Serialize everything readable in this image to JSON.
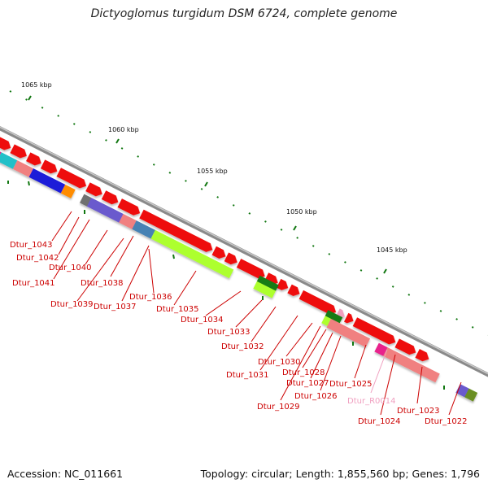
{
  "title": "Dictyoglomus turgidum DSM 6724, complete genome",
  "footer": {
    "accession": "Accession: NC_011661",
    "summary": "Topology: circular; Length: 1,855,560 bp; Genes: 1,796"
  },
  "scale_labels": [
    "1065 kbp",
    "1060 kbp",
    "1055 kbp",
    "1050 kbp",
    "1045 kbp"
  ],
  "gene_labels": [
    "Dtur_1043",
    "Dtur_1042",
    "Dtur_1040",
    "Dtur_1041",
    "Dtur_1039",
    "Dtur_1038",
    "Dtur_1037",
    "Dtur_1036",
    "Dtur_1035",
    "Dtur_1034",
    "Dtur_1033",
    "Dtur_1032",
    "Dtur_1031",
    "Dtur_1030",
    "Dtur_1028",
    "Dtur_1027",
    "Dtur_1029",
    "Dtur_1026",
    "Dtur_1025",
    "Dtur_R0014",
    "Dtur_1024",
    "Dtur_1023",
    "Dtur_1022"
  ],
  "colors": {
    "gene_red": "#ee1111",
    "rna_pink": "#f0a0c0",
    "label_red": "#cc0000",
    "backbone": "#8a8a8a",
    "tick_green": "#117711"
  }
}
